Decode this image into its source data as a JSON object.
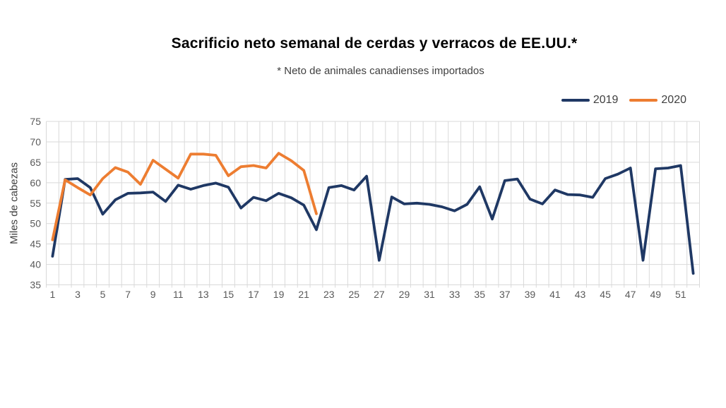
{
  "title": "Sacrificio neto semanal de cerdas y verracos de EE.UU.*",
  "subtitle": "* Neto de animales canadienses importados",
  "y_axis_title": "Miles de cabezas",
  "legend": [
    {
      "label": "2019",
      "color": "#1F3864"
    },
    {
      "label": "2020",
      "color": "#ED7D31"
    }
  ],
  "colors": {
    "series_2019": "#1F3864",
    "series_2020": "#ED7D31",
    "gridline": "#D9D9D9",
    "tick_label": "#595959",
    "subtitle_text": "#404040",
    "title_text": "#000000",
    "background": "#FFFFFF"
  },
  "chart_data": {
    "type": "line",
    "title": "Sacrificio neto semanal de cerdas y verracos de EE.UU.*",
    "subtitle": "* Neto de animales canadienses importados",
    "xlabel": "",
    "ylabel": "Miles de cabezas",
    "ylim": [
      35,
      75
    ],
    "ytick_step": 5,
    "ytick_labels": [
      35,
      40,
      45,
      50,
      55,
      60,
      65,
      70,
      75
    ],
    "x": [
      1,
      2,
      3,
      4,
      5,
      6,
      7,
      8,
      9,
      10,
      11,
      12,
      13,
      14,
      15,
      16,
      17,
      18,
      19,
      20,
      21,
      22,
      23,
      24,
      25,
      26,
      27,
      28,
      29,
      30,
      31,
      32,
      33,
      34,
      35,
      36,
      37,
      38,
      39,
      40,
      41,
      42,
      43,
      44,
      45,
      46,
      47,
      48,
      49,
      50,
      51,
      52
    ],
    "xtick_labels": [
      1,
      3,
      5,
      7,
      9,
      11,
      13,
      15,
      17,
      19,
      21,
      23,
      25,
      27,
      29,
      31,
      33,
      35,
      37,
      39,
      41,
      43,
      45,
      47,
      49,
      51
    ],
    "grid": true,
    "legend_position": "top-right",
    "series": [
      {
        "name": "2019",
        "color": "#1F3864",
        "values": [
          42,
          60.8,
          61,
          58.8,
          52.3,
          55.8,
          57.4,
          57.5,
          57.7,
          55.4,
          59.4,
          58.4,
          59.3,
          59.9,
          58.9,
          53.8,
          56.4,
          55.6,
          57.4,
          56.3,
          54.5,
          48.5,
          58.8,
          59.3,
          58.2,
          61.6,
          41,
          56.5,
          54.8,
          55,
          54.7,
          54.1,
          53.1,
          54.7,
          59,
          51.1,
          60.5,
          60.9,
          56,
          54.8,
          58.2,
          57.1,
          57,
          56.4,
          61,
          62.1,
          63.6,
          41,
          63.4,
          63.6,
          64.2,
          37.8
        ]
      },
      {
        "name": "2020",
        "color": "#ED7D31",
        "values": [
          46,
          60.7,
          58.8,
          57,
          61,
          63.7,
          62.6,
          59.6,
          65.5,
          63.3,
          61.1,
          67,
          67,
          66.7,
          61.7,
          63.9,
          64.2,
          63.6,
          67.2,
          65.4,
          63,
          52.4
        ]
      }
    ]
  }
}
